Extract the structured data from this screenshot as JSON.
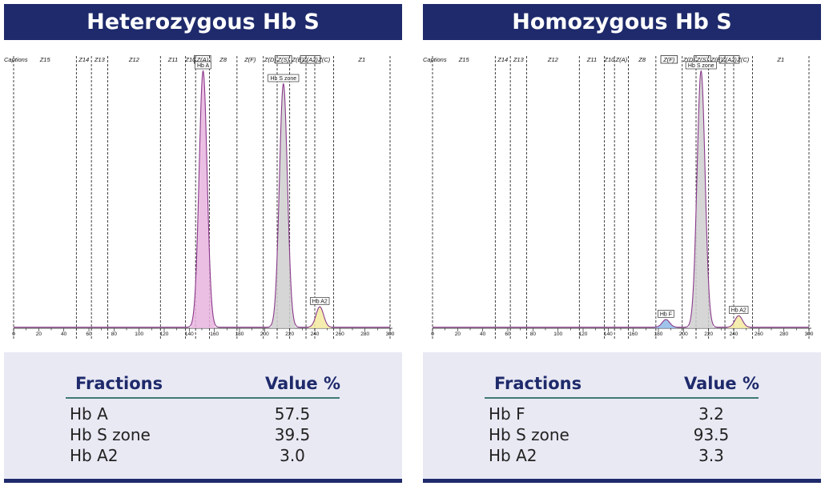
{
  "colors": {
    "title_bg": "#1e2a6b",
    "table_bg": "#e9e9f4",
    "header_text": "#1e2a6b",
    "rule": "#3f7a73",
    "curve": "#8b3a8b",
    "hbA_fill": "#e8b4de",
    "hbS_fill": "#cfcfcf",
    "hbA2_fill": "#f3eaa0",
    "hbF_fill": "#8fb8e8"
  },
  "chart_data": [
    {
      "type": "area",
      "title": "Heterozygous Hb S",
      "xlim": [
        0,
        300
      ],
      "x_ticks": [
        "0",
        "20",
        "40",
        "60",
        "80",
        "100",
        "120",
        "140",
        "160",
        "180",
        "200",
        "220",
        "240",
        "260",
        "280",
        "300"
      ],
      "captions_label": "Captions",
      "zones": [
        {
          "label": "Z15",
          "boxed": false
        },
        {
          "label": "Z14",
          "boxed": false
        },
        {
          "label": "Z13",
          "boxed": false
        },
        {
          "label": "Z12",
          "boxed": false
        },
        {
          "label": "Z11",
          "boxed": false
        },
        {
          "label": "Z10",
          "boxed": false
        },
        {
          "label": "Z(A)",
          "boxed": true
        },
        {
          "label": "Z8",
          "boxed": false
        },
        {
          "label": "Z(F)",
          "boxed": false
        },
        {
          "label": "Z(D)",
          "boxed": false
        },
        {
          "label": "Z(S)",
          "boxed": true
        },
        {
          "label": "Z(E)",
          "boxed": false
        },
        {
          "label": "Z(A2)",
          "boxed": true
        },
        {
          "label": "Z(C)",
          "boxed": false
        },
        {
          "label": "Z1",
          "boxed": false
        }
      ],
      "zone_boundaries": [
        0,
        50,
        62,
        75,
        117,
        137,
        145,
        156,
        178,
        199,
        210,
        220,
        233,
        240,
        255,
        300
      ],
      "peaks": [
        {
          "label": "Hb A",
          "center": 151,
          "height": 100,
          "fill": "#e8b4de"
        },
        {
          "label": "Hb S zone",
          "center": 215,
          "height": 95,
          "fill": "#cfcfcf"
        },
        {
          "label": "Hb A2",
          "center": 244,
          "height": 8,
          "fill": "#f3eaa0"
        }
      ],
      "table": {
        "header": {
          "fraction": "Fractions",
          "value": "Value %"
        },
        "rows": [
          {
            "name": "Hb A",
            "value": "57.5"
          },
          {
            "name": "Hb S zone",
            "value": "39.5"
          },
          {
            "name": "Hb A2",
            "value": "3.0"
          }
        ]
      }
    },
    {
      "type": "area",
      "title": "Homozygous Hb S",
      "xlim": [
        0,
        300
      ],
      "x_ticks": [
        "0",
        "20",
        "40",
        "60",
        "80",
        "100",
        "120",
        "140",
        "160",
        "180",
        "200",
        "220",
        "240",
        "260",
        "280",
        "300"
      ],
      "captions_label": "Captions",
      "zones": [
        {
          "label": "Z15",
          "boxed": false
        },
        {
          "label": "Z14",
          "boxed": false
        },
        {
          "label": "Z13",
          "boxed": false
        },
        {
          "label": "Z12",
          "boxed": false
        },
        {
          "label": "Z11",
          "boxed": false
        },
        {
          "label": "Z10",
          "boxed": false
        },
        {
          "label": "Z(A)",
          "boxed": false
        },
        {
          "label": "Z8",
          "boxed": false
        },
        {
          "label": "Z(F)",
          "boxed": true
        },
        {
          "label": "Z(D)",
          "boxed": false
        },
        {
          "label": "Z(S)",
          "boxed": true
        },
        {
          "label": "Z(E)",
          "boxed": false
        },
        {
          "label": "Z(A2)",
          "boxed": true
        },
        {
          "label": "Z(C)",
          "boxed": false
        },
        {
          "label": "Z1",
          "boxed": false
        }
      ],
      "zone_boundaries": [
        0,
        50,
        62,
        75,
        117,
        137,
        145,
        156,
        178,
        199,
        210,
        220,
        233,
        240,
        255,
        300
      ],
      "peaks": [
        {
          "label": "Hb F",
          "center": 186,
          "height": 3,
          "fill": "#8fb8e8"
        },
        {
          "label": "Hb S zone",
          "center": 214,
          "height": 100,
          "fill": "#cfcfcf"
        },
        {
          "label": "Hb A2",
          "center": 244,
          "height": 4.5,
          "fill": "#f3eaa0"
        }
      ],
      "table": {
        "header": {
          "fraction": "Fractions",
          "value": "Value %"
        },
        "rows": [
          {
            "name": "Hb F",
            "value": "3.2"
          },
          {
            "name": "Hb S zone",
            "value": "93.5"
          },
          {
            "name": "Hb A2",
            "value": "3.3"
          }
        ]
      }
    }
  ]
}
